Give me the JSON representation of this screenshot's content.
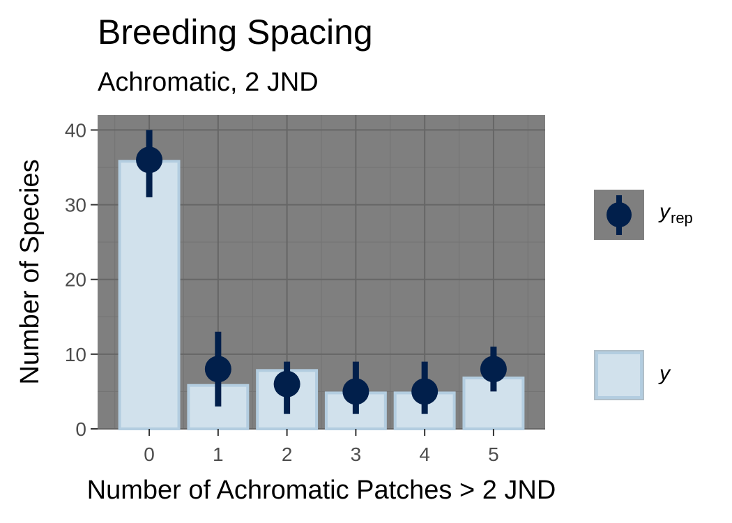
{
  "chart_data": {
    "type": "bar",
    "title": "Breeding Spacing",
    "subtitle": "Achromatic, 2 JND",
    "xlabel": "Number of Achromatic Patches > 2 JND",
    "ylabel": "Number of Species",
    "categories": [
      "0",
      "1",
      "2",
      "3",
      "4",
      "5"
    ],
    "x": [
      0,
      1,
      2,
      3,
      4,
      5
    ],
    "ylim": [
      0,
      42
    ],
    "xlim": [
      -0.75,
      5.75
    ],
    "yticks": [
      0,
      10,
      20,
      30,
      40
    ],
    "ytick_labels": [
      "0",
      "10",
      "20",
      "30",
      "40"
    ],
    "grid": true,
    "legend_position": "right",
    "series": [
      {
        "name": "y",
        "type": "bar",
        "values": [
          36,
          6,
          8,
          5,
          5,
          7
        ]
      },
      {
        "name": "yrep",
        "type": "pointrange",
        "median": [
          36,
          8,
          6,
          5,
          5,
          8
        ],
        "lower": [
          31,
          3,
          2,
          2,
          2,
          5
        ],
        "upper": [
          40,
          13,
          9,
          9,
          9,
          11
        ]
      }
    ],
    "legend": {
      "yrep": {
        "main": "y",
        "sub": "rep"
      },
      "y": {
        "main": "y"
      }
    },
    "colors": {
      "panel": "#7f7f7f",
      "grid_major": "#666666",
      "grid_minor": "#737373",
      "bar_fill": "#d1e1ec",
      "bar_outline": "#b3cde0",
      "point": "#011f4b"
    }
  }
}
